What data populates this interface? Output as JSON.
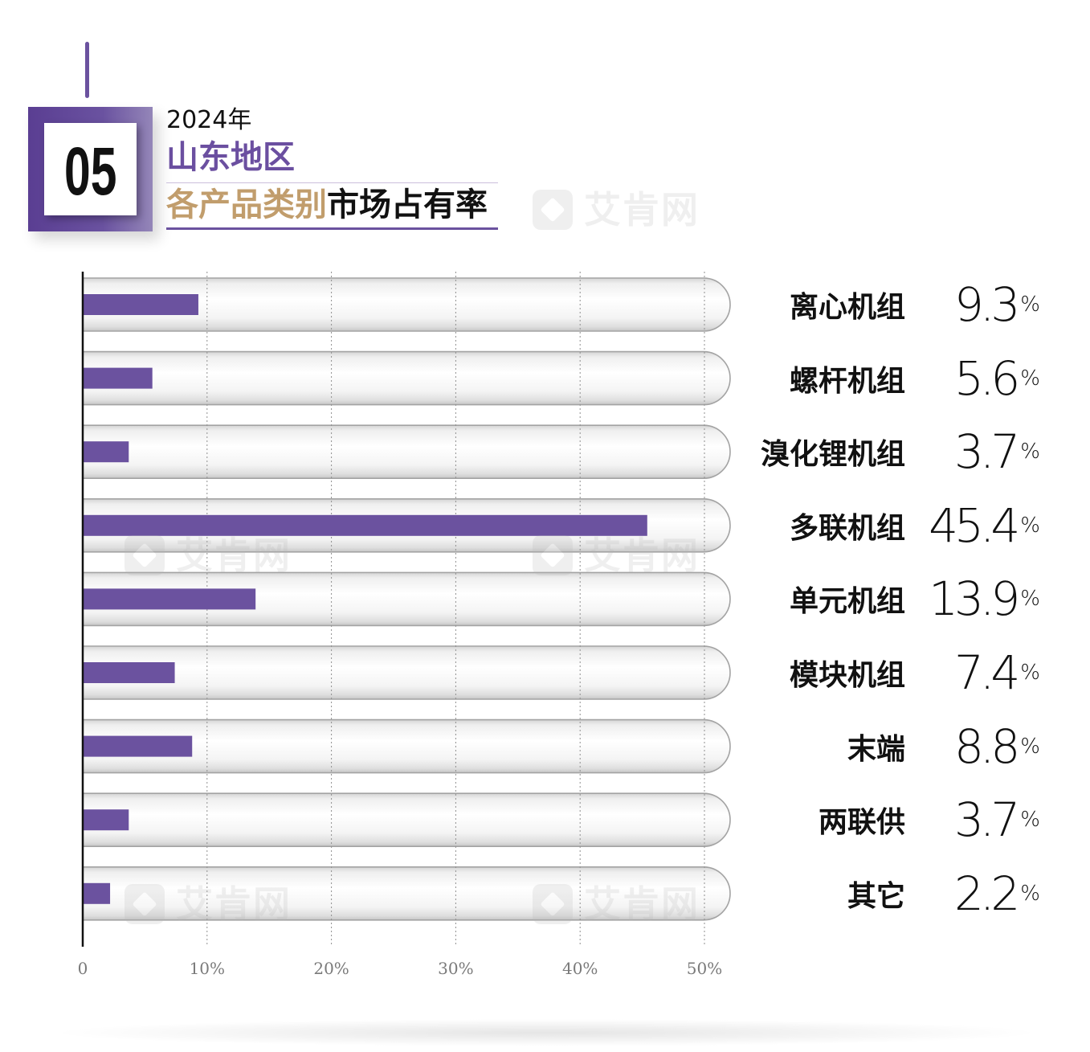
{
  "header": {
    "badge_number": "05"
  },
  "watermark": "艾肯网",
  "colors": {
    "accent": "#6b529f",
    "gold": "#c19d6c",
    "text": "#111111",
    "axis_label": "#7a7a7a"
  },
  "chart_data": {
    "type": "bar",
    "horizontal": true,
    "title": {
      "year": "2024年",
      "region": "山东地区",
      "highlight": "各产品类别",
      "rest": "市场占有率"
    },
    "categories": [
      "离心机组",
      "螺杆机组",
      "溴化锂机组",
      "多联机组",
      "单元机组",
      "模块机组",
      "末端",
      "两联供",
      "其它"
    ],
    "values": [
      9.3,
      5.6,
      3.7,
      45.4,
      13.9,
      7.4,
      8.8,
      3.7,
      2.2
    ],
    "value_suffix": "%",
    "xlim": [
      0,
      50
    ],
    "x_tick_values": [
      0,
      10,
      20,
      30,
      40,
      50
    ],
    "x_ticks": [
      "0",
      "10%",
      "20%",
      "30%",
      "40%",
      "50%"
    ],
    "grid": true
  }
}
